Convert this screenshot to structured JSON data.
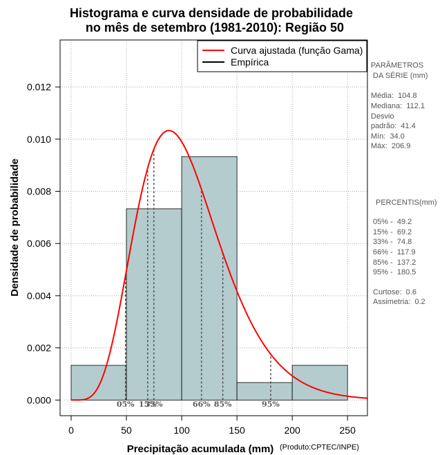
{
  "chart_data": {
    "type": "histogram",
    "title_line1": "Histograma e curva densidade de probabilidade",
    "title_line2": "no mês de setembro (1981-2010): Região 50",
    "xlabel": "Precipitação acumulada (mm)",
    "ylabel": "Densidade de probabilidade",
    "credit": "(Produto:CPTEC/INPE)",
    "xlim": [
      -10,
      268
    ],
    "ylim": [
      -0.0006,
      0.0138
    ],
    "x_ticks": [
      0,
      50,
      100,
      150,
      200,
      250
    ],
    "x_tick_labels": [
      "0",
      "50",
      "100",
      "150",
      "200",
      "250"
    ],
    "y_ticks": [
      0.0,
      0.002,
      0.004,
      0.006,
      0.008,
      0.01,
      0.012
    ],
    "y_tick_labels": [
      "0.000",
      "0.002",
      "0.004",
      "0.006",
      "0.008",
      "0.010",
      "0.012"
    ],
    "grid": true,
    "bins": [
      {
        "start": 0,
        "end": 50,
        "density": 0.00133
      },
      {
        "start": 50,
        "end": 100,
        "density": 0.00733
      },
      {
        "start": 100,
        "end": 150,
        "density": 0.00933
      },
      {
        "start": 150,
        "end": 200,
        "density": 0.00067
      },
      {
        "start": 200,
        "end": 250,
        "density": 0.00133
      }
    ],
    "bar_color": "#b4cccd",
    "curve_color": "#ff0000",
    "gamma_fit": {
      "mean": 104.8,
      "sd": 41.4
    },
    "percentile_lines": [
      {
        "value": 49.2,
        "label": "05%"
      },
      {
        "value": 69.2,
        "label": "15%"
      },
      {
        "value": 74.8,
        "label": "33%"
      },
      {
        "value": 117.9,
        "label": "66%"
      },
      {
        "value": 137.2,
        "label": "85%"
      },
      {
        "value": 180.5,
        "label": "95%"
      }
    ],
    "legend": {
      "position": "top-right",
      "entries": [
        {
          "label": "Curva ajustada (função Gama)",
          "color": "#ff0000"
        },
        {
          "label": "Empírica",
          "color": "#000000"
        }
      ]
    }
  },
  "stats_panel": {
    "params_title_1": "PARÂMETROS",
    "params_title_2": " DA SÉRIE (mm)",
    "media": "Média:  104.8",
    "mediana": "Mediana:  112.1",
    "desvio_1": "Desvio",
    "desvio_2": "padrão:  41.4",
    "min": "Mín:  34.0",
    "max": "Máx:  206.9",
    "percentis_title": "PERCENTIS(mm)",
    "p05": "05% -  49.2",
    "p15": "15% -  69.2",
    "p33": "33% -  74.8",
    "p66": "66% -  117.9",
    "p85": "85% -  137.2",
    "p95": "95% -  180.5",
    "curtose": "Curtose:  0.6",
    "assimetria": "Assimetria:  0.2"
  }
}
